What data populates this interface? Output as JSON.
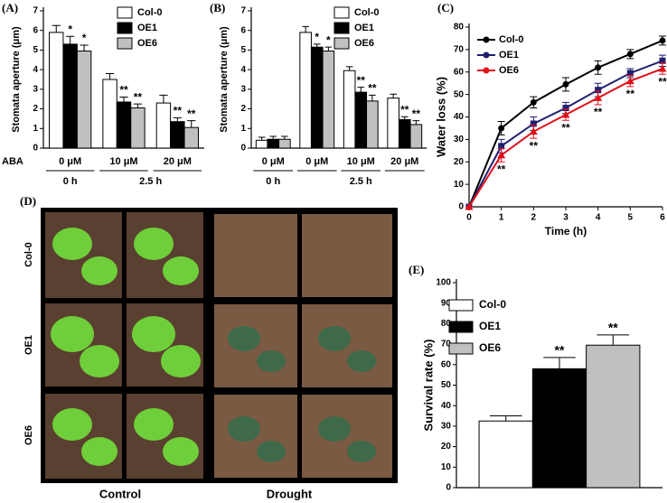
{
  "chart_data": [
    {
      "type": "bar",
      "title": "(A)",
      "y_label": "Stomata aperture (μm)",
      "category_axis_label": "ABA",
      "categories": [
        "0 μM",
        "10 μM",
        "20 μM"
      ],
      "category_groups": [
        {
          "label": "0 h",
          "count": 1
        },
        {
          "label": "2.5 h",
          "count": 2
        }
      ],
      "ylim": [
        0,
        7
      ],
      "yticks": [
        0,
        1,
        2,
        3,
        4,
        5,
        6,
        7
      ],
      "series": [
        {
          "name": "Col-0",
          "color": "#ffffff",
          "values": [
            5.9,
            3.5,
            2.3
          ],
          "errors": [
            0.35,
            0.3,
            0.4
          ]
        },
        {
          "name": "OE1",
          "color": "#000000",
          "values": [
            5.3,
            2.35,
            1.35
          ],
          "errors": [
            0.4,
            0.25,
            0.2
          ],
          "annotations": [
            "*",
            "**",
            "**"
          ]
        },
        {
          "name": "OE6",
          "color": "#c0c0c0",
          "values": [
            4.95,
            2.05,
            1.05
          ],
          "errors": [
            0.3,
            0.2,
            0.35
          ],
          "annotations": [
            "*",
            "**",
            "**"
          ]
        }
      ]
    },
    {
      "type": "bar",
      "title": "(B)",
      "y_label": "Stomata aperture (μm)",
      "categories": [
        "0 μM",
        "0 μM",
        "10 μM",
        "20 μM"
      ],
      "category_groups": [
        {
          "label": "0 h",
          "count": 1
        },
        {
          "label": "2.5 h",
          "count": 3
        }
      ],
      "ylim": [
        0,
        7
      ],
      "yticks": [
        0,
        1,
        2,
        3,
        4,
        5,
        6,
        7
      ],
      "series": [
        {
          "name": "Col-0",
          "color": "#ffffff",
          "values": [
            0.4,
            5.9,
            3.95,
            2.55
          ],
          "errors": [
            0.15,
            0.3,
            0.2,
            0.2
          ]
        },
        {
          "name": "OE1",
          "color": "#000000",
          "values": [
            0.45,
            5.15,
            2.85,
            1.45
          ],
          "errors": [
            0.15,
            0.15,
            0.25,
            0.15
          ],
          "annotations": [
            null,
            "*",
            "**",
            "**"
          ]
        },
        {
          "name": "OE6",
          "color": "#c0c0c0",
          "values": [
            0.45,
            4.95,
            2.4,
            1.2
          ],
          "errors": [
            0.15,
            0.2,
            0.3,
            0.2
          ],
          "annotations": [
            null,
            "*",
            "**",
            "**"
          ]
        }
      ]
    },
    {
      "type": "line",
      "title": "(C)",
      "y_label": "Water loss (%)",
      "x_label": "Time (h)",
      "x": [
        0,
        1,
        2,
        3,
        4,
        5,
        6
      ],
      "xlim": [
        0,
        6
      ],
      "xticks": [
        0,
        1,
        2,
        3,
        4,
        5,
        6
      ],
      "ylim": [
        0,
        80
      ],
      "yticks": [
        0,
        10,
        20,
        30,
        40,
        50,
        60,
        70,
        80
      ],
      "series": [
        {
          "name": "Col-0",
          "color": "#000000",
          "marker": "circle",
          "values": [
            0,
            35,
            46.5,
            54.5,
            62,
            68,
            74
          ],
          "errors": [
            0,
            3,
            2.5,
            3,
            3,
            2,
            2
          ]
        },
        {
          "name": "OE1",
          "color": "#1f1f6f",
          "marker": "square",
          "values": [
            0,
            27,
            37,
            44,
            52,
            59.5,
            65
          ],
          "errors": [
            0,
            3,
            3,
            2.5,
            3,
            2,
            2.5
          ]
        },
        {
          "name": "OE6",
          "color": "#e0101a",
          "marker": "triangle",
          "values": [
            0,
            23,
            33.5,
            41,
            48.5,
            56,
            61.5
          ],
          "errors": [
            0,
            3,
            3,
            2.5,
            3,
            2.5,
            2.5
          ],
          "annotations": [
            null,
            "**",
            "**",
            "**",
            "**",
            "**",
            "**"
          ]
        }
      ]
    },
    {
      "type": "bar",
      "title": "(E)",
      "y_label": "Survival rate (%)",
      "categories": [
        null
      ],
      "ylim": [
        0,
        100
      ],
      "yticks": [
        0,
        10,
        20,
        30,
        40,
        50,
        60,
        70,
        80,
        90,
        100
      ],
      "series": [
        {
          "name": "Col-0",
          "color": "#ffffff",
          "values": [
            32.5
          ],
          "errors": [
            2.5
          ]
        },
        {
          "name": "OE1",
          "color": "#000000",
          "values": [
            58
          ],
          "errors": [
            5.5
          ],
          "annotations": [
            "**"
          ]
        },
        {
          "name": "OE6",
          "color": "#c0c0c0",
          "values": [
            69.5
          ],
          "errors": [
            5
          ],
          "annotations": [
            "**"
          ]
        }
      ]
    }
  ],
  "photo_panel": {
    "title": "(D)",
    "rows": [
      "Col-0",
      "OE1",
      "OE6"
    ],
    "columns": [
      "Control",
      "Drought"
    ]
  }
}
